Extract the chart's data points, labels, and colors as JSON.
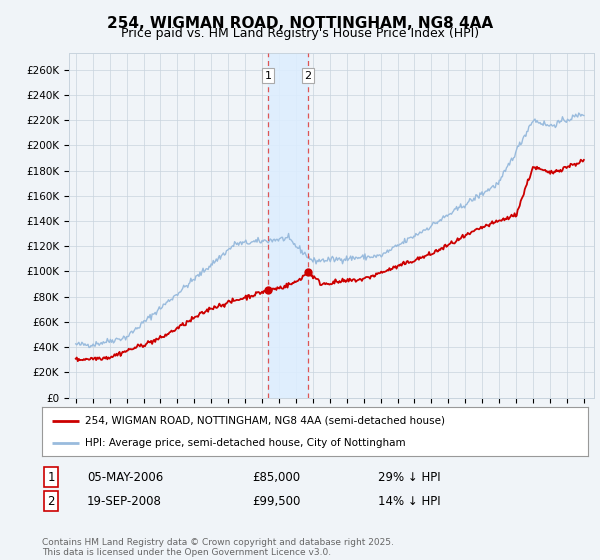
{
  "title1": "254, WIGMAN ROAD, NOTTINGHAM, NG8 4AA",
  "title2": "Price paid vs. HM Land Registry's House Price Index (HPI)",
  "ylabel_ticks": [
    0,
    20000,
    40000,
    60000,
    80000,
    100000,
    120000,
    140000,
    160000,
    180000,
    200000,
    220000,
    240000,
    260000
  ],
  "ylabel_labels": [
    "£0",
    "£20K",
    "£40K",
    "£60K",
    "£80K",
    "£100K",
    "£120K",
    "£140K",
    "£160K",
    "£180K",
    "£200K",
    "£220K",
    "£240K",
    "£260K"
  ],
  "xlim_left": 1994.6,
  "xlim_right": 2025.6,
  "ylim_top": 273000,
  "purchase1_date": 2006.35,
  "purchase1_price": 85000,
  "purchase2_date": 2008.72,
  "purchase2_price": 99500,
  "hpi_color": "#99bbdd",
  "price_color": "#cc0000",
  "vline_color": "#dd5555",
  "shade_color": "#ddeeff",
  "legend1": "254, WIGMAN ROAD, NOTTINGHAM, NG8 4AA (semi-detached house)",
  "legend2": "HPI: Average price, semi-detached house, City of Nottingham",
  "table_row1_num": "1",
  "table_row1_date": "05-MAY-2006",
  "table_row1_price": "£85,000",
  "table_row1_hpi": "29% ↓ HPI",
  "table_row2_num": "2",
  "table_row2_date": "19-SEP-2008",
  "table_row2_price": "£99,500",
  "table_row2_hpi": "14% ↓ HPI",
  "footnote": "Contains HM Land Registry data © Crown copyright and database right 2025.\nThis data is licensed under the Open Government Licence v3.0.",
  "bg_color": "#f0f4f8",
  "plot_bg": "#f0f4f8",
  "grid_color": "#c8d4de",
  "title_fontsize": 11,
  "subtitle_fontsize": 9
}
